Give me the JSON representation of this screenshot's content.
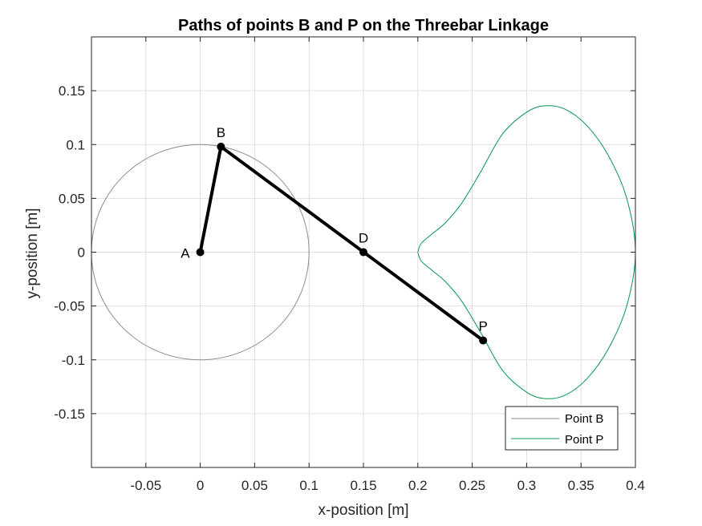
{
  "chart_data": {
    "type": "line",
    "title": "Paths of points B and P on the Threebar Linkage",
    "xlabel": "x-position [m]",
    "ylabel": "y-position [m]",
    "xlim": [
      -0.1,
      0.4
    ],
    "ylim": [
      -0.2,
      0.2
    ],
    "xticks": [
      -0.05,
      0,
      0.05,
      0.1,
      0.15,
      0.2,
      0.25,
      0.3,
      0.35,
      0.4
    ],
    "xtick_labels": [
      "-0.05",
      "0",
      "0.05",
      "0.1",
      "0.15",
      "0.2",
      "0.25",
      "0.3",
      "0.35",
      "0.4"
    ],
    "yticks": [
      0.15,
      0.1,
      0.05,
      0,
      -0.05,
      -0.1,
      -0.15
    ],
    "ytick_labels": [
      "0.15",
      "0.1",
      "0.05",
      "0",
      "-0.05",
      "-0.1",
      "-0.15"
    ],
    "grid": true,
    "legend_position": "bottom-right",
    "series": [
      {
        "name": "Point B",
        "color": "#8c8c8c",
        "shape": "circle",
        "center": [
          0,
          0
        ],
        "radius": 0.1
      },
      {
        "name": "Point P",
        "color": "#00994d",
        "x": [
          0.2,
          0.203,
          0.212,
          0.225,
          0.24,
          0.258,
          0.278,
          0.3,
          0.317,
          0.335,
          0.355,
          0.375,
          0.392,
          0.4,
          0.392,
          0.375,
          0.355,
          0.335,
          0.317,
          0.3,
          0.278,
          0.258,
          0.24,
          0.225,
          0.212,
          0.203,
          0.2
        ],
        "y": [
          0,
          0.008,
          0.016,
          0.027,
          0.045,
          0.075,
          0.11,
          0.13,
          0.136,
          0.133,
          0.118,
          0.09,
          0.05,
          0,
          -0.05,
          -0.09,
          -0.118,
          -0.133,
          -0.136,
          -0.13,
          -0.11,
          -0.075,
          -0.045,
          -0.027,
          -0.016,
          -0.008,
          0
        ]
      }
    ],
    "linkage": {
      "color": "#000000",
      "segments": [
        [
          "A",
          "B"
        ],
        [
          "B",
          "P"
        ]
      ],
      "points": [
        {
          "label": "A",
          "x": 0,
          "y": 0,
          "label_side": "left"
        },
        {
          "label": "B",
          "x": 0.019,
          "y": 0.098,
          "label_side": "top"
        },
        {
          "label": "D",
          "x": 0.15,
          "y": 0,
          "label_side": "top"
        },
        {
          "label": "P",
          "x": 0.26,
          "y": -0.082,
          "label_side": "top"
        }
      ]
    }
  }
}
